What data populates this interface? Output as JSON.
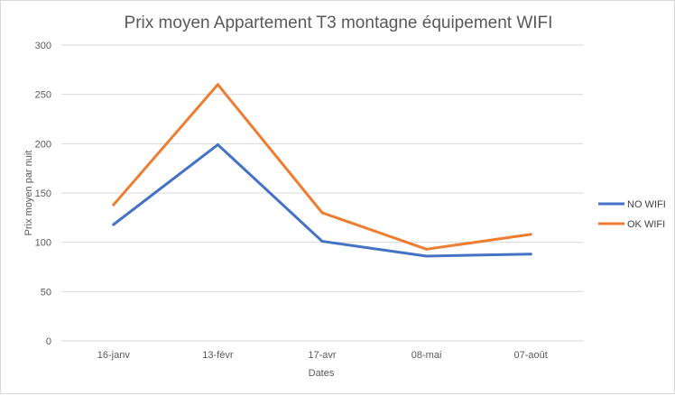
{
  "chart_data": {
    "type": "line",
    "title": "Prix moyen Appartement T3 montagne équipement WIFI",
    "xlabel": "Dates",
    "ylabel": "Prix moyen par nuit",
    "categories": [
      "16-janv",
      "13-févr",
      "17-avr",
      "08-mai",
      "07-août"
    ],
    "ylim": [
      0,
      300
    ],
    "yticks": [
      0,
      50,
      100,
      150,
      200,
      250,
      300
    ],
    "grid": true,
    "legend_position": "right",
    "series": [
      {
        "name": "NO WIFI",
        "color": "#4472c4",
        "values": [
          118,
          199,
          101,
          86,
          88
        ]
      },
      {
        "name": "OK WIFI",
        "color": "#ed7d31",
        "values": [
          138,
          260,
          130,
          93,
          108
        ]
      }
    ]
  }
}
